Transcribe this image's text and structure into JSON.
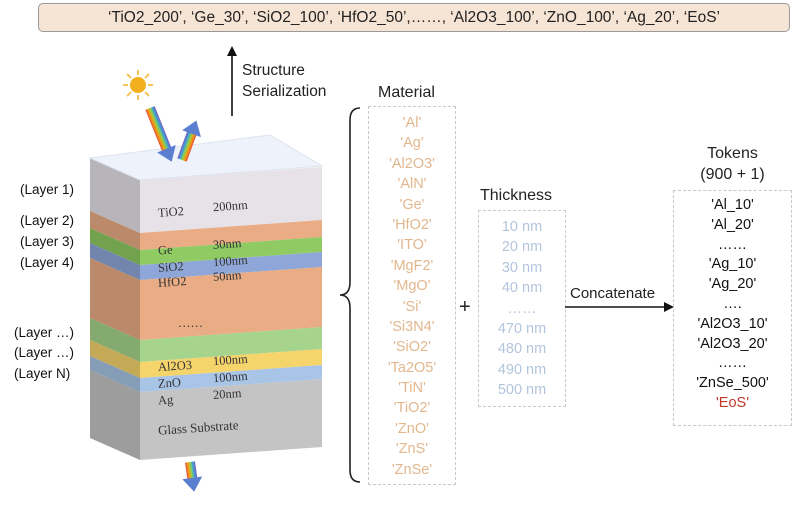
{
  "banner": {
    "sequence": "‘TiO2_200’, ‘Ge_30’, ‘SiO2_100’, ‘HfO2_50’,……, ‘Al2O3_100’, ‘ZnO_100’, ‘Ag_20’, ‘EoS’"
  },
  "serialization_label": [
    "Structure",
    "Serialization"
  ],
  "layer_labels": [
    "(Layer 1)",
    "(Layer 2)",
    "(Layer 3)",
    "(Layer 4)",
    "(Layer …)",
    "(Layer …)",
    "(Layer N)"
  ],
  "stack": {
    "layers": [
      {
        "material": "TiO2",
        "thickness": "200nm",
        "color": "#e6e2e8"
      },
      {
        "material": "Ge",
        "thickness": "30nm",
        "color": "#e9ac84"
      },
      {
        "material": "SiO2",
        "thickness": "100nm",
        "color": "#8fcb62"
      },
      {
        "material": "HfO2",
        "thickness": "50nm",
        "color": "#8ea6d8"
      },
      {
        "material": "",
        "thickness": "",
        "color": "#e9ac84"
      },
      {
        "material": "Al2O3",
        "thickness": "100nm",
        "color": "#a6d48c"
      },
      {
        "material": "ZnO",
        "thickness": "100nm",
        "color": "#f5d46c"
      },
      {
        "material": "Ag",
        "thickness": "20nm",
        "color": "#a8c4e6"
      }
    ],
    "ellipsis": "……",
    "substrate": "Glass Substrate",
    "substrate_color": "#c4c4c4"
  },
  "material": {
    "title": "Material",
    "color": "#e2b78e",
    "items": [
      "'Al'",
      "'Ag'",
      "'Al2O3'",
      "'AlN'",
      "'Ge'",
      "'HfO2'",
      "'ITO'",
      "'MgF2'",
      "'MgO'",
      "'Si'",
      "'Si3N4'",
      "'SiO2'",
      "'Ta2O5'",
      "'TiN'",
      "'TiO2'",
      "'ZnO'",
      "'ZnS'",
      "'ZnSe'"
    ]
  },
  "plus": "+",
  "thickness": {
    "title": "Thickness",
    "color": "#b3c5dd",
    "items": [
      "10 nm",
      "20 nm",
      "30 nm",
      "40 nm",
      "……",
      "470 nm",
      "480 nm",
      "490 nm",
      "500 nm"
    ]
  },
  "concatenate_label": "Concatenate",
  "tokens": {
    "title": "Tokens",
    "subtitle": "(900 + 1)",
    "eos_color": "#c0392b",
    "items": [
      "'Al_10'",
      "'Al_20'",
      "……",
      "'Ag_10'",
      "'Ag_20'",
      "….",
      "'Al2O3_10'",
      "'Al2O3_20'",
      "……",
      "'ZnSe_500'",
      "'EoS'"
    ]
  }
}
